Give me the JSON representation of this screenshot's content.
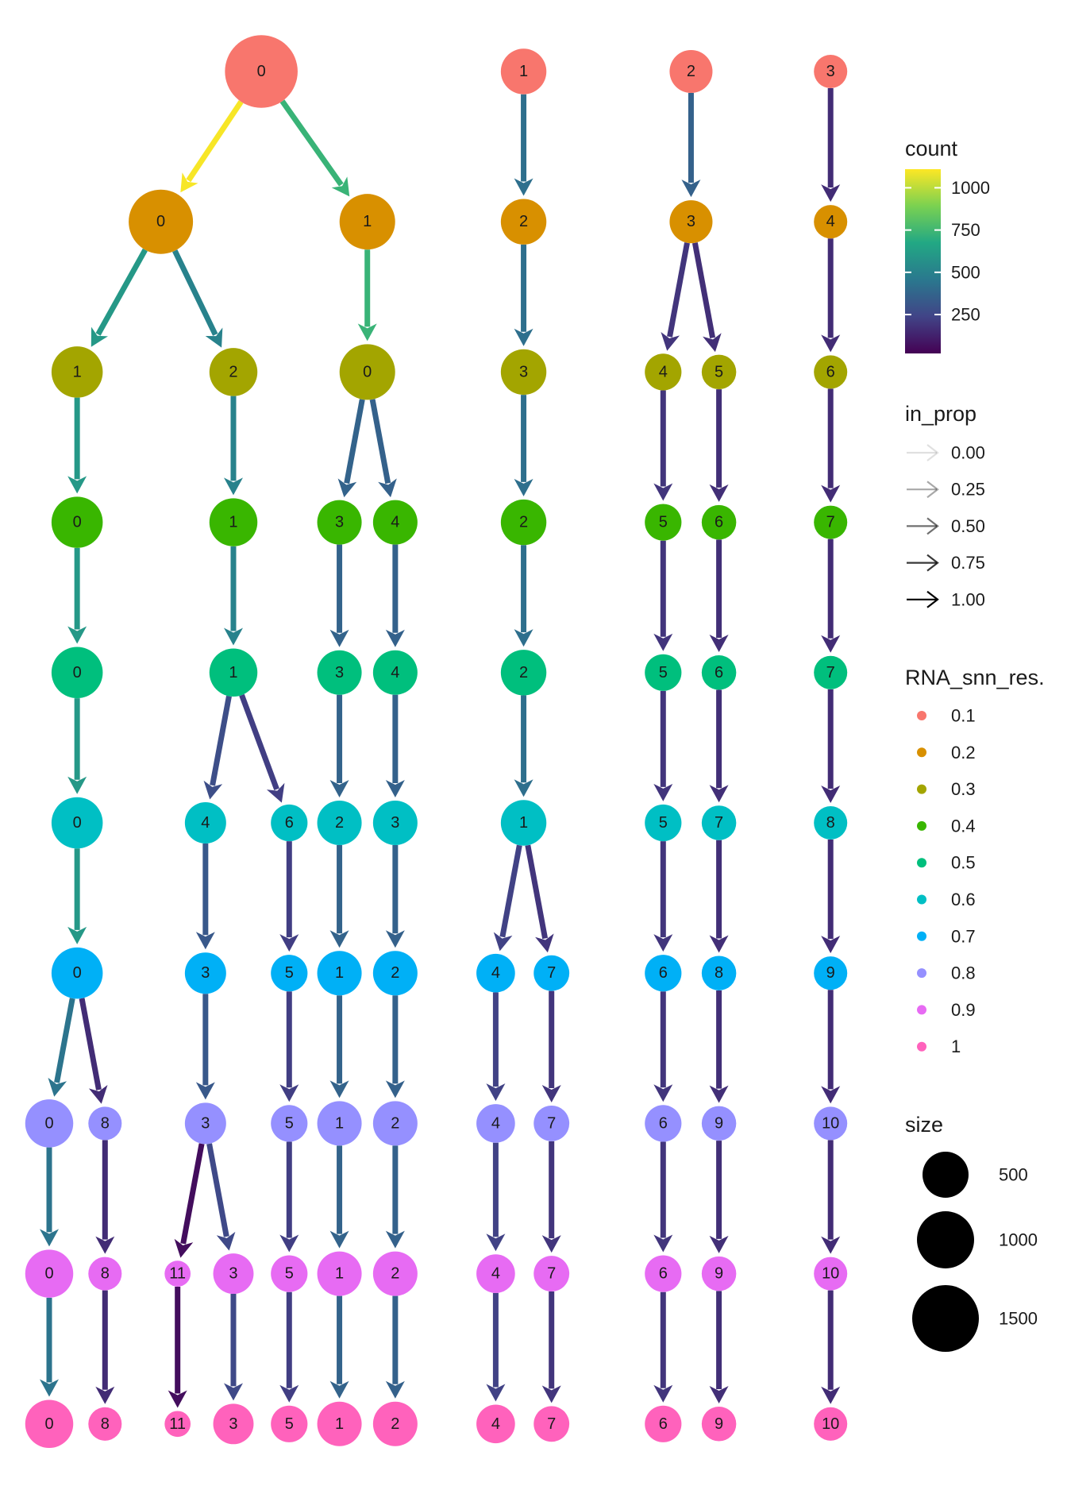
{
  "legend": {
    "count": {
      "title": "count",
      "ticks": [
        "1000",
        "750",
        "500",
        "250"
      ],
      "tick_values": [
        1000,
        750,
        500,
        250
      ],
      "range": [
        20,
        1110
      ],
      "gradient": [
        "#FDE725",
        "#7AD151",
        "#22A884",
        "#2A788E",
        "#414487",
        "#440154"
      ]
    },
    "in_prop": {
      "title": "in_prop",
      "items": [
        {
          "label": "0.00",
          "value": 0.0
        },
        {
          "label": "0.25",
          "value": 0.25
        },
        {
          "label": "0.50",
          "value": 0.5
        },
        {
          "label": "0.75",
          "value": 0.75
        },
        {
          "label": "1.00",
          "value": 1.0
        }
      ]
    },
    "resolution": {
      "title": "RNA_snn_res.",
      "items": [
        {
          "label": "0.1",
          "color": "#F8766D"
        },
        {
          "label": "0.2",
          "color": "#D89000"
        },
        {
          "label": "0.3",
          "color": "#A3A500"
        },
        {
          "label": "0.4",
          "color": "#39B600"
        },
        {
          "label": "0.5",
          "color": "#00BF7D"
        },
        {
          "label": "0.6",
          "color": "#00BFC4"
        },
        {
          "label": "0.7",
          "color": "#00B0F6"
        },
        {
          "label": "0.8",
          "color": "#9590FF"
        },
        {
          "label": "0.9",
          "color": "#E76BF3"
        },
        {
          "label": "1",
          "color": "#FF62BC"
        }
      ]
    },
    "size": {
      "title": "size",
      "items": [
        {
          "label": "500",
          "value": 500
        },
        {
          "label": "1000",
          "value": 1000
        },
        {
          "label": "1500",
          "value": 1500
        }
      ]
    }
  },
  "levels": [
    "0.1",
    "0.2",
    "0.3",
    "0.4",
    "0.5",
    "0.6",
    "0.7",
    "0.8",
    "0.9",
    "1"
  ],
  "level_colors": [
    "#F8766D",
    "#D89000",
    "#A3A500",
    "#39B600",
    "#00BF7D",
    "#00BFC4",
    "#00B0F6",
    "#9590FF",
    "#E76BF3",
    "#FF62BC"
  ],
  "nodes": [
    {
      "id": "r0c0",
      "level": 0,
      "label": "0",
      "size": 1500,
      "col": 3.8
    },
    {
      "id": "r0c1",
      "level": 0,
      "label": "1",
      "size": 430,
      "col": 8.5
    },
    {
      "id": "r0c2",
      "level": 0,
      "label": "2",
      "size": 360,
      "col": 11.5
    },
    {
      "id": "r0c3",
      "level": 0,
      "label": "3",
      "size": 160,
      "col": 14
    },
    {
      "id": "r1c0",
      "level": 1,
      "label": "0",
      "size": 1100,
      "col": 2
    },
    {
      "id": "r1c1",
      "level": 1,
      "label": "1",
      "size": 750,
      "col": 5.7
    },
    {
      "id": "r1c2",
      "level": 1,
      "label": "2",
      "size": 430,
      "col": 8.5
    },
    {
      "id": "r1c3",
      "level": 1,
      "label": "3",
      "size": 360,
      "col": 11.5
    },
    {
      "id": "r1c4",
      "level": 1,
      "label": "4",
      "size": 160,
      "col": 14
    },
    {
      "id": "r2c0",
      "level": 2,
      "label": "1",
      "size": 600,
      "col": 0.5
    },
    {
      "id": "r2c1",
      "level": 2,
      "label": "2",
      "size": 500,
      "col": 3.3
    },
    {
      "id": "r2c2",
      "level": 2,
      "label": "0",
      "size": 750,
      "col": 5.7
    },
    {
      "id": "r2c3",
      "level": 2,
      "label": "3",
      "size": 430,
      "col": 8.5
    },
    {
      "id": "r2c4",
      "level": 2,
      "label": "4",
      "size": 220,
      "col": 11
    },
    {
      "id": "r2c5",
      "level": 2,
      "label": "5",
      "size": 180,
      "col": 12
    },
    {
      "id": "r2c6",
      "level": 2,
      "label": "6",
      "size": 160,
      "col": 14
    },
    {
      "id": "r3c0",
      "level": 3,
      "label": "0",
      "size": 600,
      "col": 0.5
    },
    {
      "id": "r3c1",
      "level": 3,
      "label": "1",
      "size": 500,
      "col": 3.3
    },
    {
      "id": "r3c2",
      "level": 3,
      "label": "3",
      "size": 400,
      "col": 5.2
    },
    {
      "id": "r3c3",
      "level": 3,
      "label": "4",
      "size": 400,
      "col": 6.2
    },
    {
      "id": "r3c4",
      "level": 3,
      "label": "2",
      "size": 430,
      "col": 8.5
    },
    {
      "id": "r3c5",
      "level": 3,
      "label": "5",
      "size": 220,
      "col": 11
    },
    {
      "id": "r3c6",
      "level": 3,
      "label": "6",
      "size": 180,
      "col": 12
    },
    {
      "id": "r3c7",
      "level": 3,
      "label": "7",
      "size": 160,
      "col": 14
    },
    {
      "id": "r4c0",
      "level": 4,
      "label": "0",
      "size": 600,
      "col": 0.5
    },
    {
      "id": "r4c1",
      "level": 4,
      "label": "1",
      "size": 500,
      "col": 3.3
    },
    {
      "id": "r4c2",
      "level": 4,
      "label": "3",
      "size": 400,
      "col": 5.2
    },
    {
      "id": "r4c3",
      "level": 4,
      "label": "4",
      "size": 400,
      "col": 6.2
    },
    {
      "id": "r4c4",
      "level": 4,
      "label": "2",
      "size": 430,
      "col": 8.5
    },
    {
      "id": "r4c5",
      "level": 4,
      "label": "5",
      "size": 220,
      "col": 11
    },
    {
      "id": "r4c6",
      "level": 4,
      "label": "6",
      "size": 180,
      "col": 12
    },
    {
      "id": "r4c7",
      "level": 4,
      "label": "7",
      "size": 160,
      "col": 14
    },
    {
      "id": "r5c0",
      "level": 5,
      "label": "0",
      "size": 600,
      "col": 0.5
    },
    {
      "id": "r5c1",
      "level": 5,
      "label": "4",
      "size": 320,
      "col": 2.8
    },
    {
      "id": "r5c2",
      "level": 5,
      "label": "6",
      "size": 220,
      "col": 4.3
    },
    {
      "id": "r5c3",
      "level": 5,
      "label": "2",
      "size": 400,
      "col": 5.2
    },
    {
      "id": "r5c4",
      "level": 5,
      "label": "3",
      "size": 400,
      "col": 6.2
    },
    {
      "id": "r5c5",
      "level": 5,
      "label": "1",
      "size": 430,
      "col": 8.5
    },
    {
      "id": "r5c6",
      "level": 5,
      "label": "5",
      "size": 220,
      "col": 11
    },
    {
      "id": "r5c7",
      "level": 5,
      "label": "7",
      "size": 180,
      "col": 12
    },
    {
      "id": "r5c8",
      "level": 5,
      "label": "8",
      "size": 160,
      "col": 14
    },
    {
      "id": "r6c0",
      "level": 6,
      "label": "0",
      "size": 600,
      "col": 0.5
    },
    {
      "id": "r6c1",
      "level": 6,
      "label": "3",
      "size": 320,
      "col": 2.8
    },
    {
      "id": "r6c2",
      "level": 6,
      "label": "5",
      "size": 220,
      "col": 4.3
    },
    {
      "id": "r6c3",
      "level": 6,
      "label": "1",
      "size": 400,
      "col": 5.2
    },
    {
      "id": "r6c4",
      "level": 6,
      "label": "2",
      "size": 400,
      "col": 6.2
    },
    {
      "id": "r6c5",
      "level": 6,
      "label": "4",
      "size": 260,
      "col": 8
    },
    {
      "id": "r6c6",
      "level": 6,
      "label": "7",
      "size": 200,
      "col": 9
    },
    {
      "id": "r6c7",
      "level": 6,
      "label": "6",
      "size": 220,
      "col": 11
    },
    {
      "id": "r6c8",
      "level": 6,
      "label": "8",
      "size": 180,
      "col": 12
    },
    {
      "id": "r6c9",
      "level": 6,
      "label": "9",
      "size": 160,
      "col": 14
    },
    {
      "id": "r7c0",
      "level": 7,
      "label": "0",
      "size": 500,
      "col": 0
    },
    {
      "id": "r7c1",
      "level": 7,
      "label": "8",
      "size": 160,
      "col": 1
    },
    {
      "id": "r7c2",
      "level": 7,
      "label": "3",
      "size": 320,
      "col": 2.8
    },
    {
      "id": "r7c3",
      "level": 7,
      "label": "5",
      "size": 220,
      "col": 4.3
    },
    {
      "id": "r7c4",
      "level": 7,
      "label": "1",
      "size": 400,
      "col": 5.2
    },
    {
      "id": "r7c5",
      "level": 7,
      "label": "2",
      "size": 400,
      "col": 6.2
    },
    {
      "id": "r7c6",
      "level": 7,
      "label": "4",
      "size": 260,
      "col": 8
    },
    {
      "id": "r7c7",
      "level": 7,
      "label": "7",
      "size": 200,
      "col": 9
    },
    {
      "id": "r7c8",
      "level": 7,
      "label": "6",
      "size": 220,
      "col": 11
    },
    {
      "id": "r7c9",
      "level": 7,
      "label": "9",
      "size": 180,
      "col": 12
    },
    {
      "id": "r7c10",
      "level": 7,
      "label": "10",
      "size": 160,
      "col": 14
    },
    {
      "id": "r8c0",
      "level": 8,
      "label": "0",
      "size": 500,
      "col": 0
    },
    {
      "id": "r8c1",
      "level": 8,
      "label": "8",
      "size": 160,
      "col": 1
    },
    {
      "id": "r8c2",
      "level": 8,
      "label": "11",
      "size": 60,
      "col": 2.3
    },
    {
      "id": "r8c3",
      "level": 8,
      "label": "3",
      "size": 300,
      "col": 3.3
    },
    {
      "id": "r8c4",
      "level": 8,
      "label": "5",
      "size": 220,
      "col": 4.3
    },
    {
      "id": "r8c5",
      "level": 8,
      "label": "1",
      "size": 400,
      "col": 5.2
    },
    {
      "id": "r8c6",
      "level": 8,
      "label": "2",
      "size": 400,
      "col": 6.2
    },
    {
      "id": "r8c7",
      "level": 8,
      "label": "4",
      "size": 260,
      "col": 8
    },
    {
      "id": "r8c8",
      "level": 8,
      "label": "7",
      "size": 200,
      "col": 9
    },
    {
      "id": "r8c9",
      "level": 8,
      "label": "6",
      "size": 220,
      "col": 11
    },
    {
      "id": "r8c10",
      "level": 8,
      "label": "9",
      "size": 180,
      "col": 12
    },
    {
      "id": "r8c11",
      "level": 8,
      "label": "10",
      "size": 160,
      "col": 14
    },
    {
      "id": "r9c0",
      "level": 9,
      "label": "0",
      "size": 500,
      "col": 0
    },
    {
      "id": "r9c1",
      "level": 9,
      "label": "8",
      "size": 160,
      "col": 1
    },
    {
      "id": "r9c2",
      "level": 9,
      "label": "11",
      "size": 60,
      "col": 2.3
    },
    {
      "id": "r9c3",
      "level": 9,
      "label": "3",
      "size": 300,
      "col": 3.3
    },
    {
      "id": "r9c4",
      "level": 9,
      "label": "5",
      "size": 220,
      "col": 4.3
    },
    {
      "id": "r9c5",
      "level": 9,
      "label": "1",
      "size": 400,
      "col": 5.2
    },
    {
      "id": "r9c6",
      "level": 9,
      "label": "2",
      "size": 400,
      "col": 6.2
    },
    {
      "id": "r9c7",
      "level": 9,
      "label": "4",
      "size": 260,
      "col": 8
    },
    {
      "id": "r9c8",
      "level": 9,
      "label": "7",
      "size": 200,
      "col": 9
    },
    {
      "id": "r9c9",
      "level": 9,
      "label": "6",
      "size": 220,
      "col": 11
    },
    {
      "id": "r9c10",
      "level": 9,
      "label": "9",
      "size": 180,
      "col": 12
    },
    {
      "id": "r9c11",
      "level": 9,
      "label": "10",
      "size": 160,
      "col": 14
    }
  ],
  "edges": [
    {
      "from": "r0c0",
      "to": "r1c0",
      "count": 1100,
      "in_prop": 1.0
    },
    {
      "from": "r0c0",
      "to": "r1c1",
      "count": 730,
      "in_prop": 1.0
    },
    {
      "from": "r0c1",
      "to": "r1c2",
      "count": 420,
      "in_prop": 1.0
    },
    {
      "from": "r0c2",
      "to": "r1c3",
      "count": 360,
      "in_prop": 1.0
    },
    {
      "from": "r0c3",
      "to": "r1c4",
      "count": 160,
      "in_prop": 1.0
    },
    {
      "from": "r1c0",
      "to": "r2c0",
      "count": 600,
      "in_prop": 1.0
    },
    {
      "from": "r1c0",
      "to": "r2c1",
      "count": 500,
      "in_prop": 1.0
    },
    {
      "from": "r1c1",
      "to": "r2c2",
      "count": 730,
      "in_prop": 1.0
    },
    {
      "from": "r1c2",
      "to": "r3c4",
      "count": 420,
      "in_prop": 1.0,
      "via": "r2c3"
    },
    {
      "from": "r1c2",
      "to": "r2c3",
      "count": 420,
      "in_prop": 1.0
    },
    {
      "from": "r1c3",
      "to": "r2c4",
      "count": 190,
      "in_prop": 1.0
    },
    {
      "from": "r1c3",
      "to": "r2c5",
      "count": 170,
      "in_prop": 1.0
    },
    {
      "from": "r1c4",
      "to": "r2c6",
      "count": 160,
      "in_prop": 1.0
    },
    {
      "from": "r2c0",
      "to": "r3c0",
      "count": 600,
      "in_prop": 1.0
    },
    {
      "from": "r2c1",
      "to": "r3c1",
      "count": 500,
      "in_prop": 1.0
    },
    {
      "from": "r2c2",
      "to": "r3c2",
      "count": 370,
      "in_prop": 1.0
    },
    {
      "from": "r2c2",
      "to": "r3c3",
      "count": 360,
      "in_prop": 1.0
    },
    {
      "from": "r2c3",
      "to": "r3c4",
      "count": 420,
      "in_prop": 1.0
    },
    {
      "from": "r2c4",
      "to": "r3c5",
      "count": 190,
      "in_prop": 1.0
    },
    {
      "from": "r2c5",
      "to": "r3c6",
      "count": 170,
      "in_prop": 1.0
    },
    {
      "from": "r2c6",
      "to": "r3c7",
      "count": 160,
      "in_prop": 1.0
    },
    {
      "from": "r3c0",
      "to": "r4c0",
      "count": 600,
      "in_prop": 1.0
    },
    {
      "from": "r3c1",
      "to": "r4c1",
      "count": 500,
      "in_prop": 1.0
    },
    {
      "from": "r3c2",
      "to": "r4c2",
      "count": 370,
      "in_prop": 1.0
    },
    {
      "from": "r3c3",
      "to": "r4c3",
      "count": 360,
      "in_prop": 1.0
    },
    {
      "from": "r3c4",
      "to": "r4c4",
      "count": 420,
      "in_prop": 1.0
    },
    {
      "from": "r3c5",
      "to": "r4c5",
      "count": 190,
      "in_prop": 1.0
    },
    {
      "from": "r3c6",
      "to": "r4c6",
      "count": 170,
      "in_prop": 1.0
    },
    {
      "from": "r3c7",
      "to": "r4c7",
      "count": 160,
      "in_prop": 1.0
    },
    {
      "from": "r4c0",
      "to": "r5c0",
      "count": 600,
      "in_prop": 1.0
    },
    {
      "from": "r4c1",
      "to": "r5c1",
      "count": 280,
      "in_prop": 1.0
    },
    {
      "from": "r4c1",
      "to": "r5c2",
      "count": 220,
      "in_prop": 1.0
    },
    {
      "from": "r4c2",
      "to": "r5c3",
      "count": 370,
      "in_prop": 1.0
    },
    {
      "from": "r4c3",
      "to": "r5c4",
      "count": 360,
      "in_prop": 1.0
    },
    {
      "from": "r4c4",
      "to": "r5c5",
      "count": 420,
      "in_prop": 1.0
    },
    {
      "from": "r4c5",
      "to": "r5c6",
      "count": 190,
      "in_prop": 1.0
    },
    {
      "from": "r4c6",
      "to": "r5c7",
      "count": 170,
      "in_prop": 1.0
    },
    {
      "from": "r4c7",
      "to": "r5c8",
      "count": 160,
      "in_prop": 1.0
    },
    {
      "from": "r5c0",
      "to": "r6c0",
      "count": 600,
      "in_prop": 1.0
    },
    {
      "from": "r5c1",
      "to": "r6c1",
      "count": 320,
      "in_prop": 1.0
    },
    {
      "from": "r5c2",
      "to": "r6c2",
      "count": 220,
      "in_prop": 1.0
    },
    {
      "from": "r5c3",
      "to": "r6c3",
      "count": 370,
      "in_prop": 1.0
    },
    {
      "from": "r5c4",
      "to": "r6c4",
      "count": 360,
      "in_prop": 1.0
    },
    {
      "from": "r5c5",
      "to": "r6c5",
      "count": 230,
      "in_prop": 1.0
    },
    {
      "from": "r5c5",
      "to": "r6c6",
      "count": 190,
      "in_prop": 1.0
    },
    {
      "from": "r5c6",
      "to": "r6c7",
      "count": 190,
      "in_prop": 1.0
    },
    {
      "from": "r5c7",
      "to": "r6c8",
      "count": 170,
      "in_prop": 1.0
    },
    {
      "from": "r5c8",
      "to": "r6c9",
      "count": 160,
      "in_prop": 1.0
    },
    {
      "from": "r6c0",
      "to": "r7c0",
      "count": 440,
      "in_prop": 1.0
    },
    {
      "from": "r6c0",
      "to": "r7c1",
      "count": 160,
      "in_prop": 1.0
    },
    {
      "from": "r6c1",
      "to": "r7c2",
      "count": 320,
      "in_prop": 1.0
    },
    {
      "from": "r6c2",
      "to": "r7c3",
      "count": 220,
      "in_prop": 1.0
    },
    {
      "from": "r6c3",
      "to": "r7c4",
      "count": 370,
      "in_prop": 1.0
    },
    {
      "from": "r6c4",
      "to": "r7c5",
      "count": 360,
      "in_prop": 1.0
    },
    {
      "from": "r6c5",
      "to": "r7c6",
      "count": 230,
      "in_prop": 1.0
    },
    {
      "from": "r6c6",
      "to": "r7c7",
      "count": 190,
      "in_prop": 1.0
    },
    {
      "from": "r6c7",
      "to": "r7c8",
      "count": 190,
      "in_prop": 1.0
    },
    {
      "from": "r6c8",
      "to": "r7c9",
      "count": 170,
      "in_prop": 1.0
    },
    {
      "from": "r6c9",
      "to": "r7c10",
      "count": 160,
      "in_prop": 1.0
    },
    {
      "from": "r7c0",
      "to": "r8c0",
      "count": 440,
      "in_prop": 1.0
    },
    {
      "from": "r7c1",
      "to": "r8c1",
      "count": 160,
      "in_prop": 1.0
    },
    {
      "from": "r7c2",
      "to": "r8c2",
      "count": 60,
      "in_prop": 1.0
    },
    {
      "from": "r7c2",
      "to": "r8c3",
      "count": 260,
      "in_prop": 1.0
    },
    {
      "from": "r7c3",
      "to": "r8c4",
      "count": 220,
      "in_prop": 1.0
    },
    {
      "from": "r7c4",
      "to": "r8c5",
      "count": 370,
      "in_prop": 1.0
    },
    {
      "from": "r7c5",
      "to": "r8c6",
      "count": 360,
      "in_prop": 1.0
    },
    {
      "from": "r7c6",
      "to": "r8c7",
      "count": 230,
      "in_prop": 1.0
    },
    {
      "from": "r7c7",
      "to": "r8c8",
      "count": 190,
      "in_prop": 1.0
    },
    {
      "from": "r7c8",
      "to": "r8c9",
      "count": 190,
      "in_prop": 1.0
    },
    {
      "from": "r7c9",
      "to": "r8c10",
      "count": 170,
      "in_prop": 1.0
    },
    {
      "from": "r7c10",
      "to": "r8c11",
      "count": 160,
      "in_prop": 1.0
    },
    {
      "from": "r8c0",
      "to": "r9c0",
      "count": 440,
      "in_prop": 1.0
    },
    {
      "from": "r8c1",
      "to": "r9c1",
      "count": 160,
      "in_prop": 1.0
    },
    {
      "from": "r8c2",
      "to": "r9c2",
      "count": 60,
      "in_prop": 1.0
    },
    {
      "from": "r8c3",
      "to": "r9c3",
      "count": 260,
      "in_prop": 1.0
    },
    {
      "from": "r8c4",
      "to": "r9c4",
      "count": 220,
      "in_prop": 1.0
    },
    {
      "from": "r8c5",
      "to": "r9c5",
      "count": 370,
      "in_prop": 1.0
    },
    {
      "from": "r8c6",
      "to": "r9c6",
      "count": 360,
      "in_prop": 1.0
    },
    {
      "from": "r8c7",
      "to": "r9c7",
      "count": 230,
      "in_prop": 1.0
    },
    {
      "from": "r8c8",
      "to": "r9c8",
      "count": 190,
      "in_prop": 1.0
    },
    {
      "from": "r8c9",
      "to": "r9c9",
      "count": 190,
      "in_prop": 1.0
    },
    {
      "from": "r8c10",
      "to": "r9c10",
      "count": 170,
      "in_prop": 1.0
    },
    {
      "from": "r8c11",
      "to": "r9c11",
      "count": 160,
      "in_prop": 1.0
    }
  ]
}
